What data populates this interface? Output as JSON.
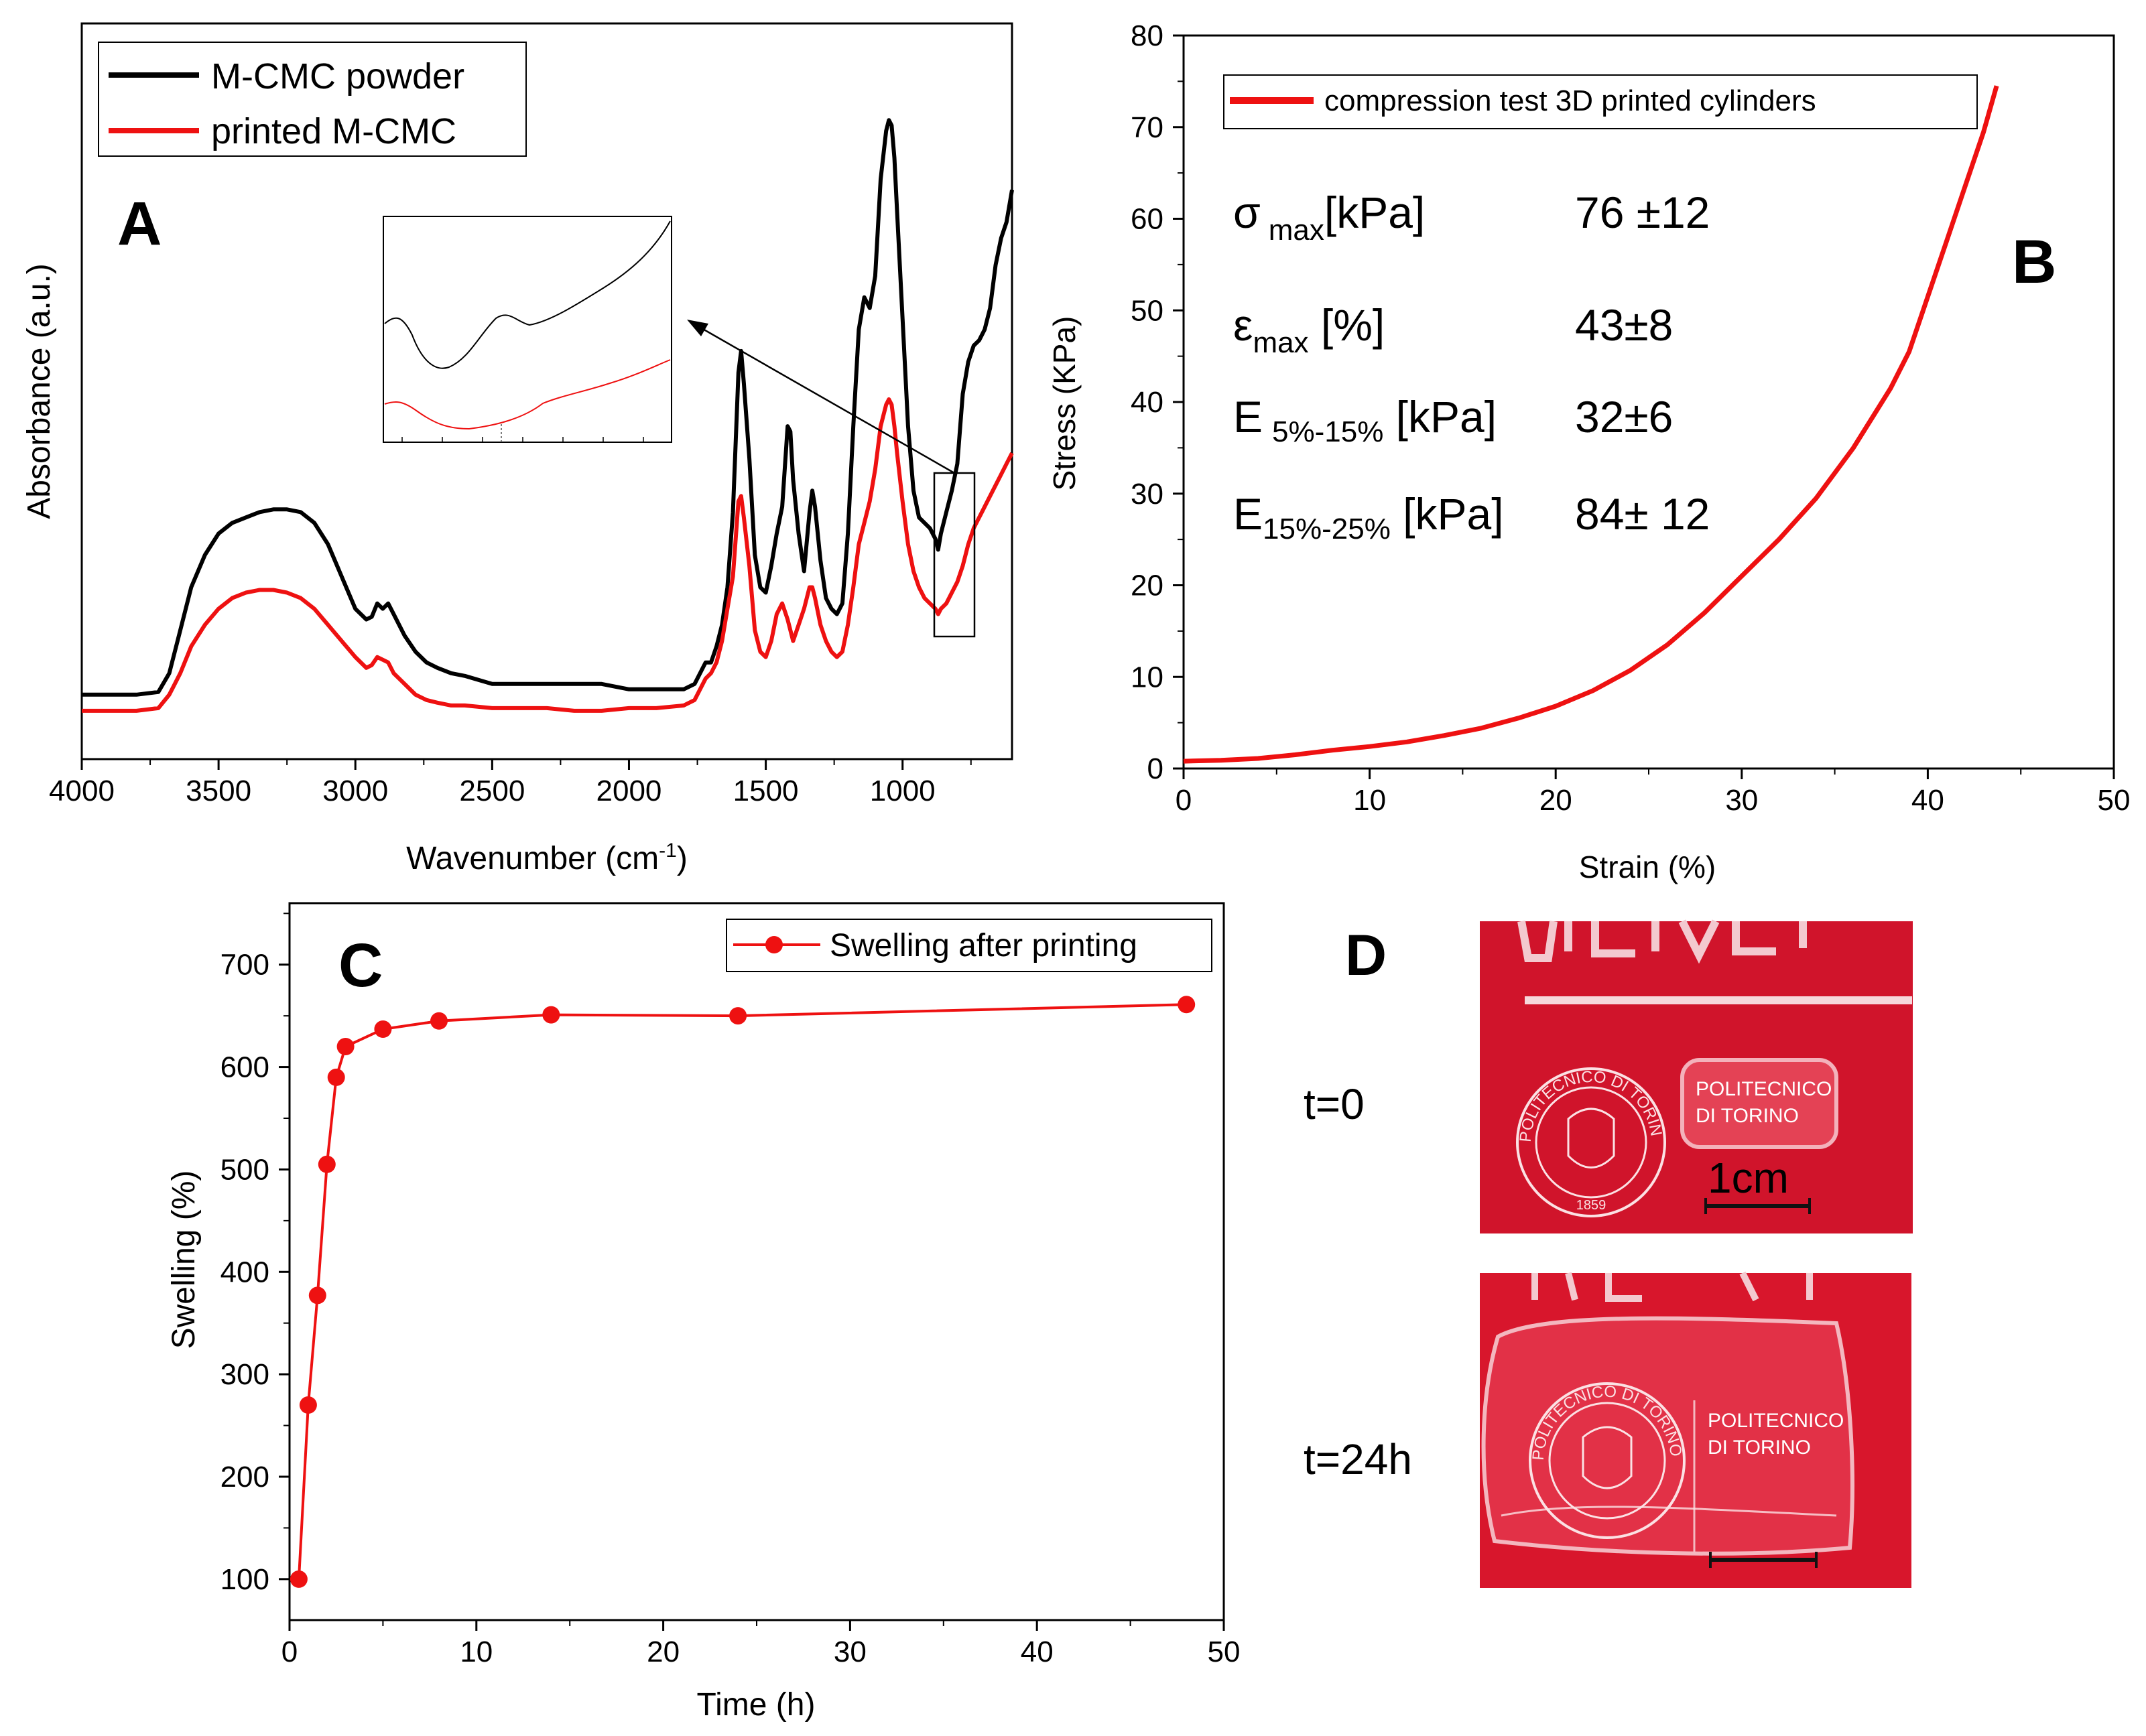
{
  "colors": {
    "black": "#000000",
    "red": "#ee1111",
    "photo_red": "#d8162c",
    "photo_red_dark": "#c2122a"
  },
  "chart_data": [
    {
      "panel": "A",
      "type": "line",
      "xlabel_main": "Wavenumber (cm",
      "xlabel_sup": "-1",
      "xlabel_close": ")",
      "ylabel": "Absorbance (a.u.)",
      "xlim": [
        4000,
        600
      ],
      "ylim": [
        -0.12,
        1.25
      ],
      "x_ticks": [
        4000,
        3500,
        3000,
        2500,
        2000,
        1500,
        1000
      ],
      "x_tick_labels": [
        "4000",
        "3500",
        "3000",
        "2500",
        "2000",
        "1500",
        "1000"
      ],
      "y_ticks_shown": false,
      "legend": {
        "position": "top-left",
        "entries": [
          "M-CMC powder",
          "printed M-CMC"
        ]
      },
      "inset_region": [
        850,
        700
      ],
      "series": [
        {
          "name": "M-CMC powder",
          "color": "#000000",
          "x": [
            4000,
            3800,
            3720,
            3680,
            3640,
            3600,
            3550,
            3500,
            3450,
            3400,
            3350,
            3300,
            3250,
            3200,
            3150,
            3100,
            3050,
            3000,
            2960,
            2940,
            2920,
            2900,
            2880,
            2860,
            2820,
            2780,
            2740,
            2700,
            2650,
            2600,
            2500,
            2400,
            2300,
            2200,
            2100,
            2000,
            1900,
            1800,
            1760,
            1740,
            1720,
            1700,
            1680,
            1660,
            1640,
            1620,
            1600,
            1590,
            1580,
            1560,
            1540,
            1520,
            1500,
            1480,
            1460,
            1440,
            1420,
            1410,
            1400,
            1380,
            1360,
            1340,
            1330,
            1320,
            1300,
            1280,
            1260,
            1240,
            1220,
            1200,
            1180,
            1160,
            1140,
            1120,
            1100,
            1080,
            1060,
            1050,
            1040,
            1030,
            1020,
            1000,
            980,
            960,
            940,
            920,
            900,
            880,
            870,
            860,
            840,
            820,
            800,
            780,
            760,
            740,
            720,
            700,
            680,
            660,
            640,
            620,
            600
          ],
          "y": [
            0.0,
            0.0,
            0.005,
            0.04,
            0.12,
            0.2,
            0.26,
            0.3,
            0.32,
            0.33,
            0.34,
            0.345,
            0.345,
            0.34,
            0.32,
            0.28,
            0.22,
            0.16,
            0.14,
            0.145,
            0.17,
            0.16,
            0.17,
            0.15,
            0.11,
            0.08,
            0.06,
            0.05,
            0.04,
            0.035,
            0.02,
            0.02,
            0.02,
            0.02,
            0.02,
            0.01,
            0.01,
            0.01,
            0.02,
            0.04,
            0.06,
            0.06,
            0.09,
            0.13,
            0.2,
            0.34,
            0.6,
            0.64,
            0.58,
            0.44,
            0.26,
            0.2,
            0.19,
            0.24,
            0.3,
            0.35,
            0.5,
            0.49,
            0.4,
            0.3,
            0.23,
            0.34,
            0.38,
            0.35,
            0.25,
            0.18,
            0.16,
            0.15,
            0.17,
            0.3,
            0.5,
            0.68,
            0.74,
            0.72,
            0.78,
            0.96,
            1.05,
            1.07,
            1.06,
            1.0,
            0.9,
            0.7,
            0.5,
            0.38,
            0.33,
            0.32,
            0.31,
            0.29,
            0.27,
            0.3,
            0.34,
            0.38,
            0.43,
            0.56,
            0.62,
            0.65,
            0.66,
            0.68,
            0.72,
            0.8,
            0.85,
            0.88,
            0.94
          ]
        },
        {
          "name": "printed M-CMC",
          "color": "#ee1111",
          "x": [
            4000,
            3800,
            3720,
            3680,
            3640,
            3600,
            3550,
            3500,
            3450,
            3400,
            3350,
            3300,
            3250,
            3200,
            3150,
            3100,
            3050,
            3000,
            2960,
            2940,
            2920,
            2900,
            2880,
            2860,
            2820,
            2780,
            2740,
            2700,
            2650,
            2600,
            2500,
            2400,
            2300,
            2200,
            2100,
            2000,
            1900,
            1800,
            1760,
            1740,
            1720,
            1700,
            1680,
            1660,
            1640,
            1620,
            1600,
            1590,
            1580,
            1560,
            1540,
            1520,
            1500,
            1480,
            1460,
            1440,
            1420,
            1410,
            1400,
            1380,
            1360,
            1340,
            1330,
            1320,
            1300,
            1280,
            1260,
            1240,
            1220,
            1200,
            1180,
            1160,
            1140,
            1120,
            1100,
            1080,
            1060,
            1050,
            1040,
            1030,
            1020,
            1000,
            980,
            960,
            940,
            920,
            900,
            880,
            870,
            860,
            840,
            820,
            800,
            780,
            760,
            740,
            720,
            700,
            680,
            660,
            640,
            620,
            600
          ],
          "y": [
            -0.03,
            -0.03,
            -0.025,
            0.0,
            0.04,
            0.09,
            0.13,
            0.16,
            0.18,
            0.19,
            0.195,
            0.195,
            0.19,
            0.18,
            0.16,
            0.13,
            0.1,
            0.07,
            0.05,
            0.055,
            0.07,
            0.065,
            0.06,
            0.04,
            0.02,
            0.0,
            -0.01,
            -0.015,
            -0.02,
            -0.02,
            -0.025,
            -0.025,
            -0.025,
            -0.03,
            -0.03,
            -0.025,
            -0.025,
            -0.02,
            -0.01,
            0.01,
            0.03,
            0.04,
            0.06,
            0.1,
            0.16,
            0.22,
            0.36,
            0.37,
            0.33,
            0.24,
            0.12,
            0.08,
            0.07,
            0.1,
            0.15,
            0.17,
            0.14,
            0.12,
            0.1,
            0.13,
            0.16,
            0.2,
            0.2,
            0.18,
            0.13,
            0.1,
            0.08,
            0.07,
            0.08,
            0.13,
            0.2,
            0.28,
            0.32,
            0.36,
            0.42,
            0.5,
            0.54,
            0.55,
            0.54,
            0.5,
            0.45,
            0.36,
            0.28,
            0.23,
            0.2,
            0.18,
            0.17,
            0.16,
            0.15,
            0.16,
            0.17,
            0.19,
            0.21,
            0.24,
            0.28,
            0.31,
            0.33,
            0.35,
            0.37,
            0.39,
            0.41,
            0.43,
            0.45
          ]
        }
      ]
    },
    {
      "panel": "B",
      "type": "line",
      "xlabel": "Strain (%)",
      "ylabel": "Stress (KPa)",
      "xlim": [
        0,
        50
      ],
      "ylim": [
        0,
        80
      ],
      "x_ticks": [
        0,
        10,
        20,
        30,
        40,
        50
      ],
      "x_tick_labels": [
        "0",
        "10",
        "20",
        "30",
        "40",
        "50"
      ],
      "y_ticks": [
        0,
        10,
        20,
        30,
        40,
        50,
        60,
        70,
        80
      ],
      "y_tick_labels": [
        "0",
        "10",
        "20",
        "30",
        "40",
        "50",
        "60",
        "70",
        "80"
      ],
      "legend": {
        "position": "top",
        "entries": [
          "compression test 3D printed cylinders"
        ]
      },
      "series": [
        {
          "name": "compression test 3D printed cylinders",
          "color": "#ee1111",
          "x": [
            0,
            2,
            4,
            6,
            8,
            10,
            12,
            14,
            16,
            18,
            20,
            22,
            24,
            26,
            28,
            30,
            32,
            34,
            36,
            38,
            39,
            40,
            41,
            42,
            43,
            43.7
          ],
          "y": [
            0.8,
            0.9,
            1.1,
            1.5,
            2.0,
            2.4,
            2.9,
            3.6,
            4.4,
            5.5,
            6.8,
            8.5,
            10.7,
            13.5,
            17.0,
            21.0,
            25.0,
            29.5,
            35.0,
            41.5,
            45.5,
            51.5,
            57.5,
            63.5,
            69.5,
            74.5
          ]
        }
      ],
      "stats": [
        {
          "sym": "σ",
          "sub": "max",
          "unit": "[kPa]",
          "value": "76 ±12"
        },
        {
          "sym": "ε",
          "sub": "max",
          "unit": " [%]",
          "value": "43±8"
        },
        {
          "sym": "E",
          "sub": "5%-15%",
          "unit": " [kPa]",
          "value": "32±6"
        },
        {
          "sym": "E",
          "sub": "15%-25%",
          "unit": " [kPa]",
          "value": "84± 12"
        }
      ]
    },
    {
      "panel": "C",
      "type": "line",
      "xlabel": "Time (h)",
      "ylabel": "Swelling (%)",
      "xlim": [
        0,
        50
      ],
      "ylim": [
        60,
        760
      ],
      "x_ticks": [
        0,
        10,
        20,
        30,
        40,
        50
      ],
      "x_tick_labels": [
        "0",
        "10",
        "20",
        "30",
        "40",
        "50"
      ],
      "y_ticks": [
        100,
        200,
        300,
        400,
        500,
        600,
        700
      ],
      "y_tick_labels": [
        "100",
        "200",
        "300",
        "400",
        "500",
        "600",
        "700"
      ],
      "legend": {
        "position": "top-right",
        "entries": [
          "Swelling after printing"
        ]
      },
      "series": [
        {
          "name": "Swelling after printing",
          "color": "#ee1111",
          "x": [
            0.5,
            1,
            1.5,
            2,
            2.5,
            3,
            5,
            8,
            14,
            24,
            48
          ],
          "y": [
            100,
            270,
            377,
            505,
            590,
            620,
            637,
            645,
            651,
            650,
            661
          ]
        }
      ]
    }
  ],
  "panel_labels": {
    "a": "A",
    "b": "B",
    "c": "C",
    "d": "D"
  },
  "photo_panel": {
    "t0_label": "t=0",
    "t24_label": "t=24h",
    "institution_line1": "POLITECNICO",
    "institution_line2": "DI TORINO",
    "seal_text": "POLITECNICO DI TORINO",
    "seal_years": "1859",
    "scale_label": "1cm"
  }
}
